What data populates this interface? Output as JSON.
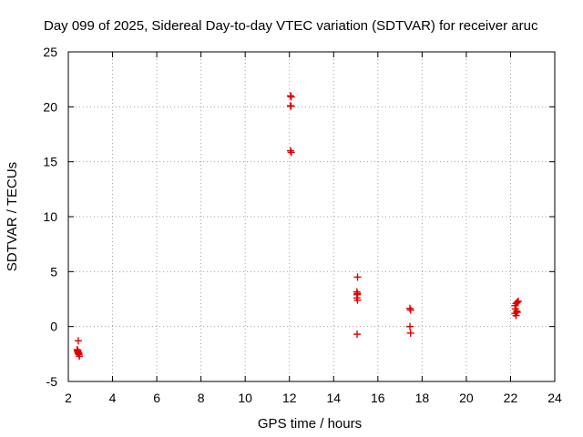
{
  "chart_data": {
    "type": "scatter",
    "title": "Day 099 of 2025, Sidereal Day-to-day VTEC variation (SDTVAR) for receiver aruc",
    "xlabel": "GPS time / hours",
    "ylabel": "SDTVAR / TECUs",
    "xlim": [
      2,
      24
    ],
    "ylim": [
      -5,
      25
    ],
    "xticks": [
      2,
      4,
      6,
      8,
      10,
      12,
      14,
      16,
      18,
      20,
      22,
      24
    ],
    "yticks": [
      -5,
      0,
      5,
      10,
      15,
      20,
      25
    ],
    "grid": true,
    "marker": "plus",
    "color": "#e00000",
    "series": [
      {
        "name": "SDTVAR",
        "points": [
          [
            2.45,
            -1.3
          ],
          [
            2.4,
            -2.1
          ],
          [
            2.42,
            -2.25
          ],
          [
            2.44,
            -2.35
          ],
          [
            2.46,
            -2.45
          ],
          [
            2.48,
            -2.55
          ],
          [
            2.5,
            -2.7
          ],
          [
            2.43,
            -2.2
          ],
          [
            2.47,
            -2.4
          ],
          [
            12.05,
            21.0
          ],
          [
            12.08,
            20.9
          ],
          [
            12.05,
            20.1
          ],
          [
            12.07,
            20.05
          ],
          [
            12.05,
            16.0
          ],
          [
            12.08,
            15.85
          ],
          [
            15.08,
            4.5
          ],
          [
            15.05,
            3.15
          ],
          [
            15.08,
            3.0
          ],
          [
            15.06,
            2.9
          ],
          [
            15.05,
            2.6
          ],
          [
            15.08,
            2.4
          ],
          [
            15.06,
            -0.7
          ],
          [
            17.45,
            1.65
          ],
          [
            17.48,
            1.5
          ],
          [
            17.45,
            0.0
          ],
          [
            17.48,
            -0.6
          ],
          [
            22.2,
            1.9
          ],
          [
            22.25,
            2.1
          ],
          [
            22.3,
            2.2
          ],
          [
            22.35,
            2.3
          ],
          [
            22.22,
            1.6
          ],
          [
            22.28,
            1.4
          ],
          [
            22.2,
            1.2
          ],
          [
            22.25,
            1.0
          ],
          [
            22.3,
            1.3
          ]
        ]
      }
    ]
  }
}
